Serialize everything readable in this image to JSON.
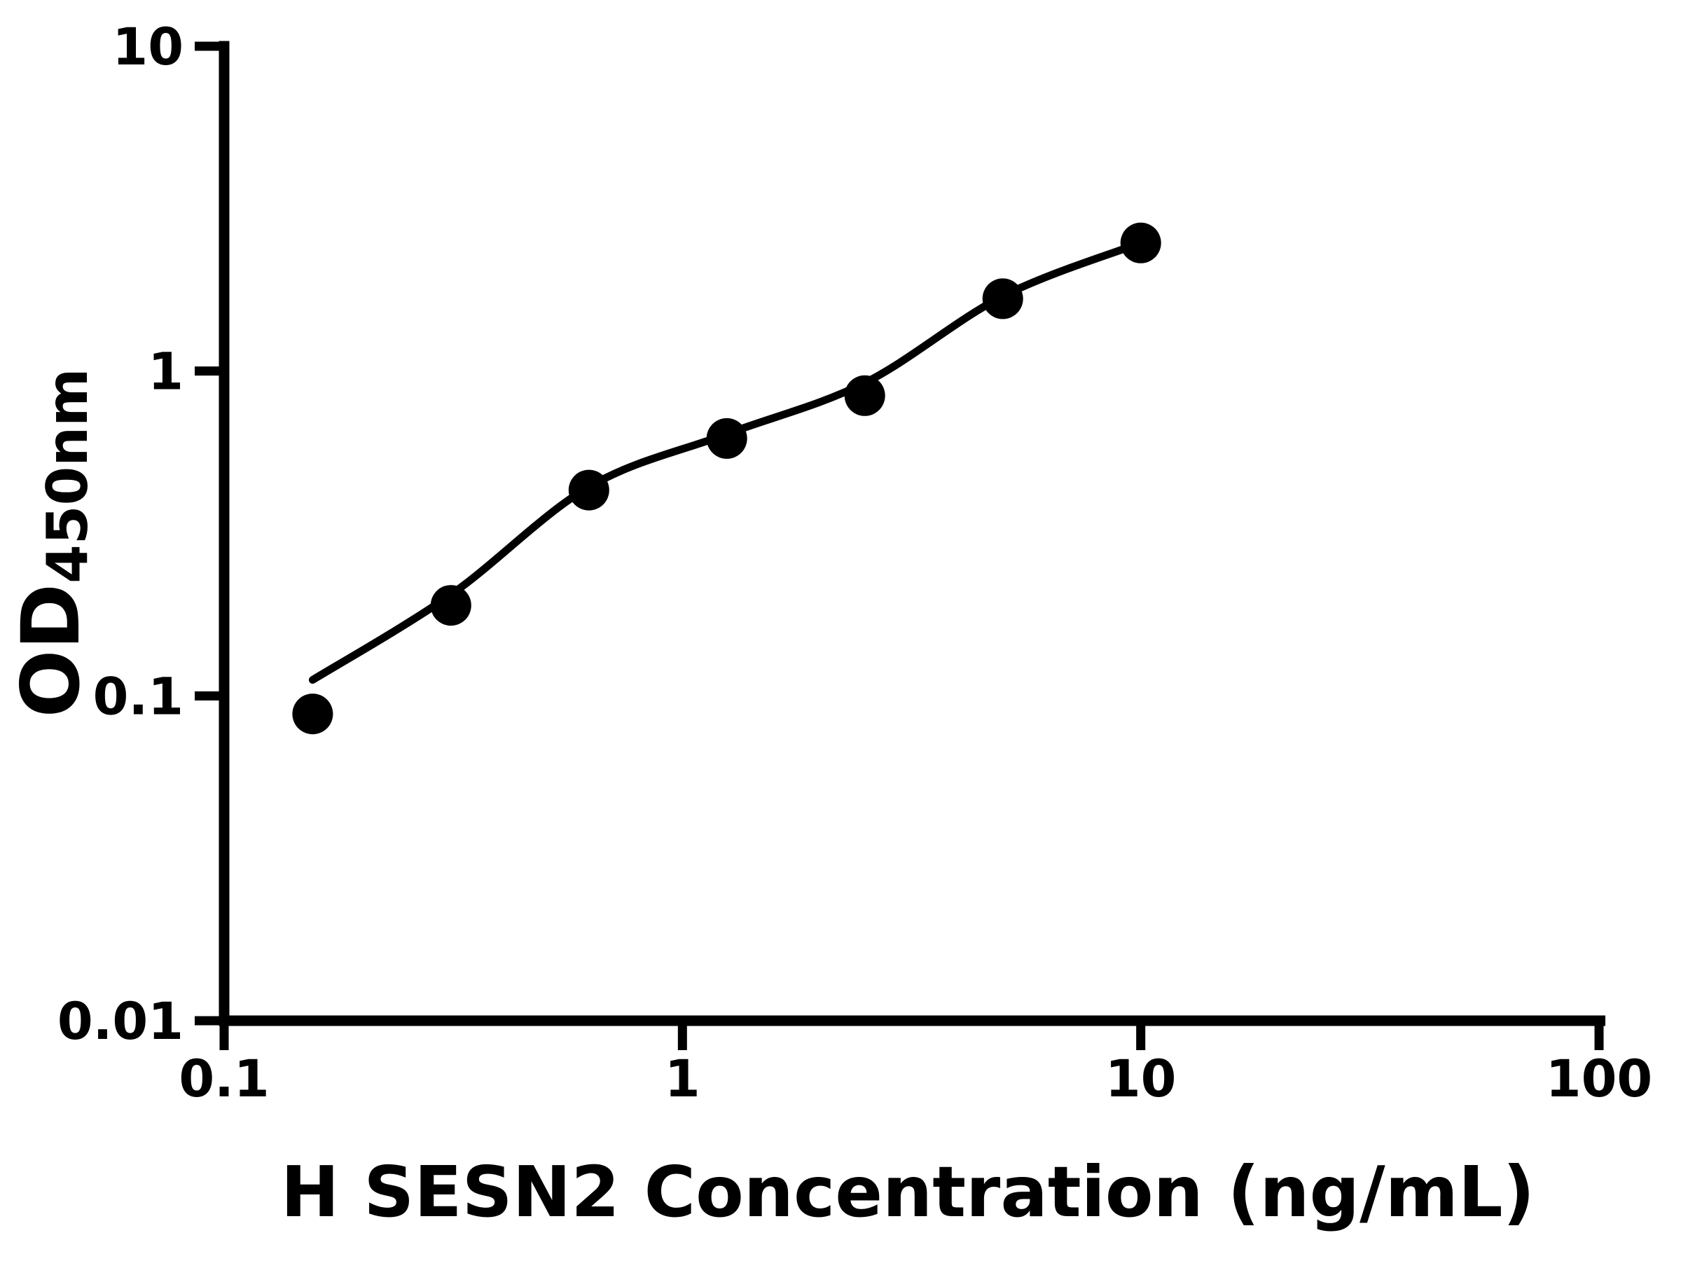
{
  "figure": {
    "background": "#ffffff",
    "foreground": "#000000"
  },
  "chart_data": {
    "type": "scatter",
    "title": "",
    "xlabel": "H SESN2 Concentration (ng/mL)",
    "ylabel_main": "OD",
    "ylabel_sub": "450nm",
    "x_scale": "log",
    "y_scale": "log",
    "xlim": [
      0.1,
      100
    ],
    "ylim": [
      0.01,
      10
    ],
    "grid": false,
    "legend": false,
    "x_ticks": [
      {
        "v": 0.1,
        "label": "0.1"
      },
      {
        "v": 1,
        "label": "1"
      },
      {
        "v": 10,
        "label": "10"
      },
      {
        "v": 100,
        "label": "100"
      }
    ],
    "y_ticks": [
      {
        "v": 0.01,
        "label": "0.01"
      },
      {
        "v": 0.1,
        "label": "0.1"
      },
      {
        "v": 1,
        "label": "1"
      },
      {
        "v": 10,
        "label": "10"
      }
    ],
    "series": [
      {
        "name": "fit-curve",
        "type": "line",
        "color": "#000000",
        "points": [
          [
            0.156,
            0.112
          ],
          [
            0.3125,
            0.205
          ],
          [
            0.625,
            0.44
          ],
          [
            1.25,
            0.64
          ],
          [
            2.5,
            0.92
          ],
          [
            5,
            1.7
          ],
          [
            10,
            2.48
          ]
        ]
      },
      {
        "name": "standards",
        "type": "scatter",
        "marker": "circle",
        "color": "#000000",
        "points": [
          [
            0.156,
            0.088
          ],
          [
            0.3125,
            0.19
          ],
          [
            0.625,
            0.43
          ],
          [
            1.25,
            0.62
          ],
          [
            2.5,
            0.84
          ],
          [
            5,
            1.67
          ],
          [
            10,
            2.48
          ]
        ]
      }
    ]
  }
}
